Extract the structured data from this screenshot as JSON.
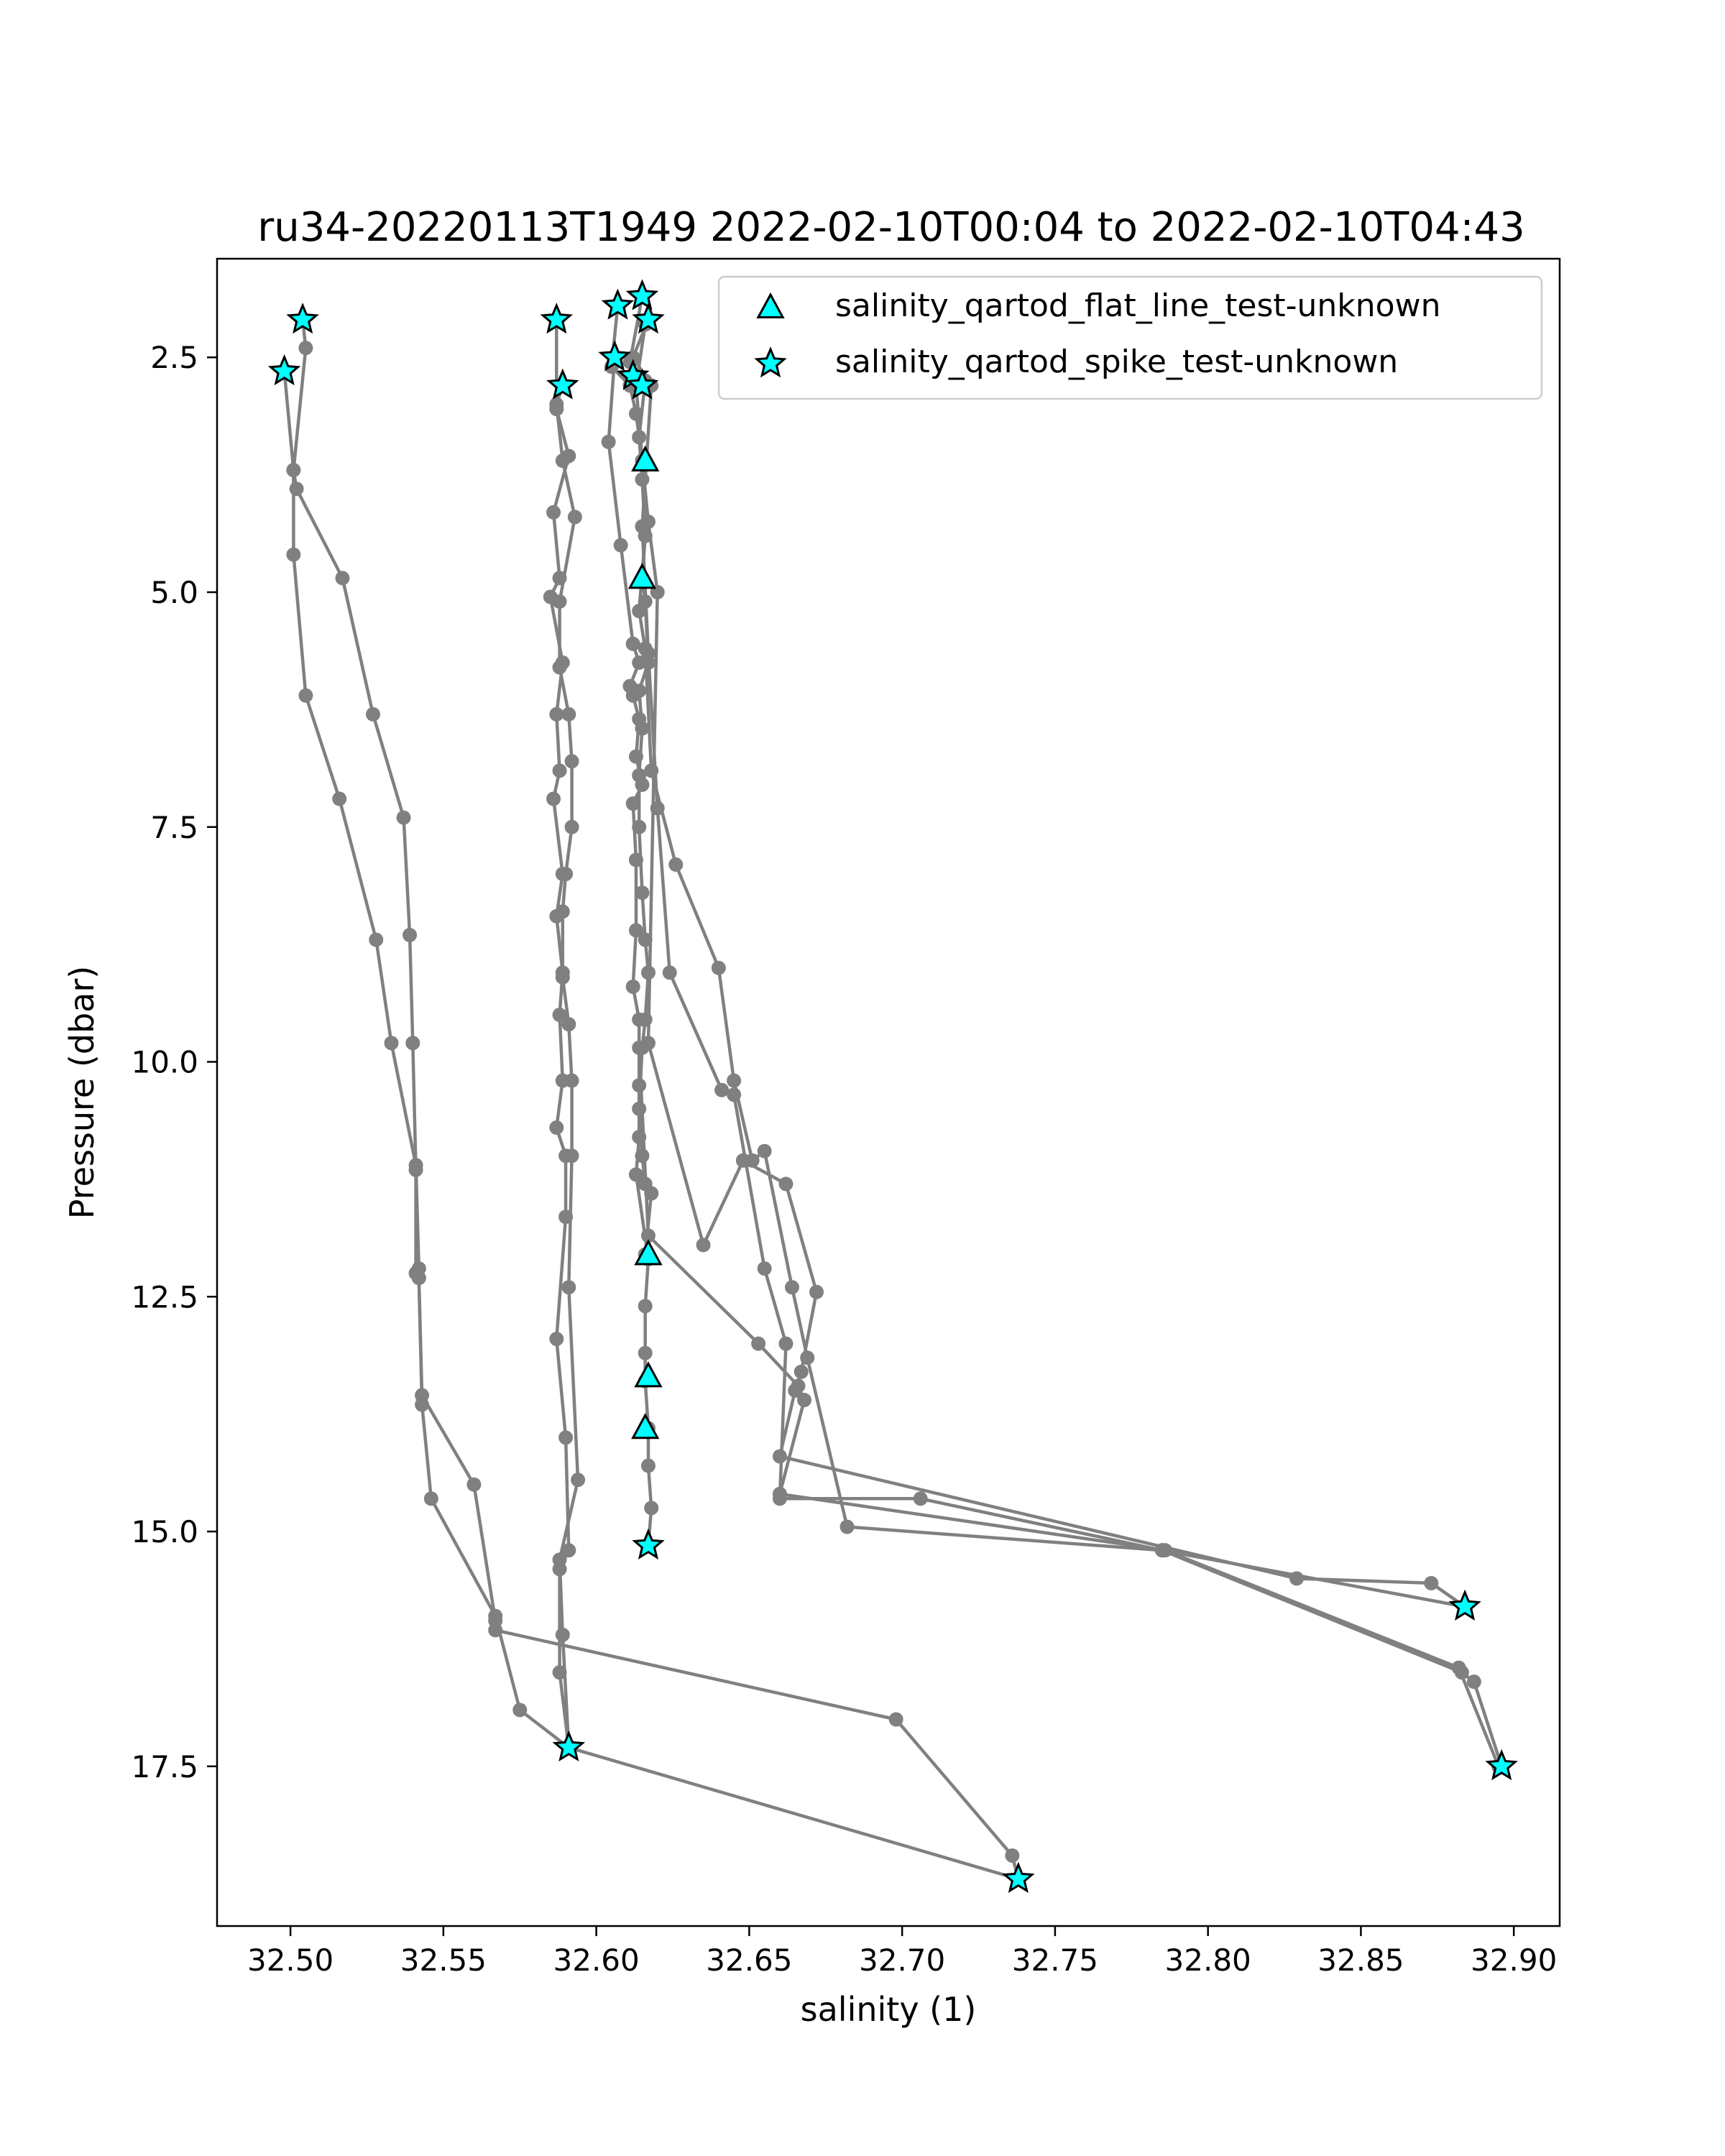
{
  "chart_data": {
    "type": "scatter",
    "title": "ru34-20220113T1949 2022-02-10T00:04 to 2022-02-10T04:43",
    "xlabel": "salinity (1)",
    "ylabel": "Pressure (dbar)",
    "xlim": [
      32.476,
      32.915
    ],
    "ylim": [
      19.2,
      1.45
    ],
    "y_inverted": true,
    "xticks": [
      "32.50",
      "32.55",
      "32.60",
      "32.65",
      "32.70",
      "32.75",
      "32.80",
      "32.85",
      "32.90"
    ],
    "yticks": [
      "2.5",
      "5.0",
      "7.5",
      "10.0",
      "12.5",
      "15.0",
      "17.5"
    ],
    "grid": false,
    "legend_position": "top-right",
    "line_color": "#808080",
    "marker_color": "#00ffff",
    "marker_edge_color": "#000000",
    "profile_series": [
      {
        "x": [
          32.504,
          32.505,
          32.501,
          32.502,
          32.517,
          32.527,
          32.537,
          32.539,
          32.54,
          32.541,
          32.541,
          32.542,
          32.543,
          32.56,
          32.567,
          32.567,
          32.698,
          32.736,
          32.738
        ],
        "y": [
          2.1,
          2.4,
          3.7,
          3.9,
          4.85,
          6.3,
          7.4,
          8.65,
          9.8,
          11.15,
          12.25,
          12.3,
          13.55,
          14.5,
          15.95,
          16.05,
          17.0,
          18.45,
          18.7
        ]
      },
      {
        "x": [
          32.498,
          32.501,
          32.501,
          32.505,
          32.516,
          32.528,
          32.533,
          32.541,
          32.542,
          32.542,
          32.543,
          32.546,
          32.567,
          32.575,
          32.591,
          32.738
        ],
        "y": [
          2.65,
          3.7,
          4.6,
          6.1,
          7.2,
          8.7,
          9.8,
          11.1,
          12.2,
          12.3,
          13.65,
          14.65,
          15.9,
          16.9,
          17.3,
          18.7
        ]
      },
      {
        "x": [
          32.587,
          32.587,
          32.591,
          32.586,
          32.588,
          32.585,
          32.589,
          32.587,
          32.588,
          32.586,
          32.589,
          32.587,
          32.589,
          32.588,
          32.589,
          32.587,
          32.59,
          32.59,
          32.587,
          32.59,
          32.591,
          32.588,
          32.588,
          32.591
        ],
        "y": [
          2.1,
          3.05,
          3.55,
          4.15,
          4.85,
          5.05,
          5.75,
          6.3,
          6.9,
          7.2,
          8.0,
          8.45,
          9.05,
          9.5,
          10.2,
          10.7,
          11.0,
          11.65,
          12.95,
          14.0,
          15.2,
          15.4,
          16.5,
          17.3
        ]
      },
      {
        "x": [
          32.589,
          32.587,
          32.589,
          32.593,
          32.588,
          32.588,
          32.591,
          32.592,
          32.592,
          32.59,
          32.589,
          32.589,
          32.591,
          32.592,
          32.592,
          32.591,
          32.594,
          32.588,
          32.589,
          32.591
        ],
        "y": [
          2.8,
          3.0,
          3.6,
          4.2,
          5.1,
          5.8,
          6.3,
          6.8,
          7.5,
          8.0,
          8.4,
          9.1,
          9.6,
          10.2,
          11.0,
          12.4,
          14.45,
          15.3,
          16.1,
          17.3
        ]
      },
      {
        "x": [
          32.606,
          32.604,
          32.608,
          32.612,
          32.614,
          32.611,
          32.612,
          32.614,
          32.613,
          32.615,
          32.612,
          32.613,
          32.613,
          32.612,
          32.614,
          32.614,
          32.614,
          32.613,
          32.617,
          32.616,
          32.616,
          32.616,
          32.617,
          32.617,
          32.618,
          32.617
        ],
        "y": [
          2.5,
          3.4,
          4.5,
          5.55,
          5.75,
          6.0,
          6.1,
          6.35,
          6.75,
          7.05,
          7.25,
          7.85,
          8.6,
          9.2,
          9.55,
          10.25,
          10.8,
          11.2,
          12.1,
          12.6,
          13.1,
          13.4,
          13.9,
          14.3,
          14.75,
          15.15
        ]
      },
      {
        "x": [
          32.607,
          32.605,
          32.611,
          32.613,
          32.615,
          32.616,
          32.615,
          32.616,
          32.617,
          32.614,
          32.615,
          32.614,
          32.614,
          32.615,
          32.616,
          32.617,
          32.616,
          32.615,
          32.614,
          32.615,
          32.616,
          32.618,
          32.616
        ],
        "y": [
          1.95,
          2.6,
          2.8,
          3.1,
          3.6,
          4.4,
          4.85,
          5.1,
          5.75,
          6.05,
          6.45,
          6.95,
          7.5,
          8.2,
          8.7,
          9.05,
          9.55,
          9.85,
          10.5,
          11.0,
          11.3,
          11.4,
          12.05
        ]
      },
      {
        "x": [
          32.615,
          32.611,
          32.616,
          32.614,
          32.615,
          32.616,
          32.614,
          32.616,
          32.618,
          32.626,
          32.64,
          32.645,
          32.651,
          32.655,
          32.664,
          32.669,
          32.682,
          32.785,
          32.884
        ],
        "y": [
          1.85,
          2.55,
          2.75,
          3.35,
          3.8,
          4.4,
          5.2,
          5.6,
          6.9,
          7.9,
          9.0,
          10.2,
          11.05,
          10.95,
          12.4,
          13.15,
          14.95,
          15.2,
          15.8
        ]
      },
      {
        "x": [
          32.617,
          32.612,
          32.618,
          32.615,
          32.617,
          32.62,
          32.624,
          32.641,
          32.645,
          32.655,
          32.662,
          32.66,
          32.706,
          32.785,
          32.883,
          32.887,
          32.896
        ],
        "y": [
          2.1,
          2.5,
          2.8,
          4.3,
          5.65,
          7.3,
          9.05,
          10.3,
          10.35,
          12.2,
          13.0,
          14.65,
          14.65,
          15.2,
          16.5,
          16.6,
          17.5
        ]
      },
      {
        "x": [
          32.616,
          32.613,
          32.615,
          32.617,
          32.62,
          32.617,
          32.635,
          32.648,
          32.662,
          32.672,
          32.667,
          32.665,
          32.66,
          32.829,
          32.873,
          32.884
        ],
        "y": [
          2.15,
          2.8,
          3.6,
          4.25,
          5.0,
          9.8,
          11.95,
          11.05,
          11.3,
          12.45,
          13.3,
          13.5,
          14.2,
          15.5,
          15.55,
          15.8
        ]
      },
      {
        "x": [
          32.614,
          32.617,
          32.653,
          32.666,
          32.668,
          32.66,
          32.786,
          32.882,
          32.895
        ],
        "y": [
          9.85,
          11.85,
          13.0,
          13.45,
          13.6,
          14.6,
          15.2,
          16.45,
          17.5
        ]
      }
    ],
    "series": [
      {
        "name": "salinity_qartod_flat_line_test-unknown",
        "marker": "triangle",
        "points": [
          [
            32.616,
            3.6
          ],
          [
            32.615,
            4.85
          ],
          [
            32.617,
            12.05
          ],
          [
            32.617,
            13.35
          ],
          [
            32.616,
            13.9
          ]
        ]
      },
      {
        "name": "salinity_qartod_spike_test-unknown",
        "marker": "star",
        "points": [
          [
            32.504,
            2.1
          ],
          [
            32.498,
            2.65
          ],
          [
            32.587,
            2.1
          ],
          [
            32.589,
            2.8
          ],
          [
            32.607,
            1.95
          ],
          [
            32.615,
            1.85
          ],
          [
            32.617,
            2.1
          ],
          [
            32.606,
            2.5
          ],
          [
            32.612,
            2.7
          ],
          [
            32.615,
            2.8
          ],
          [
            32.617,
            15.15
          ],
          [
            32.591,
            17.3
          ],
          [
            32.738,
            18.7
          ],
          [
            32.884,
            15.8
          ],
          [
            32.896,
            17.5
          ]
        ]
      }
    ]
  }
}
